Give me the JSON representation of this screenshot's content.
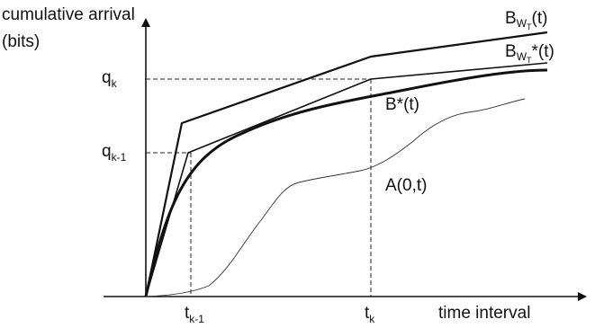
{
  "axes": {
    "y_label_line1": "cumulative arrival",
    "y_label_line2": "(bits)",
    "x_label": "time interval"
  },
  "markers": {
    "qk": {
      "base": "q",
      "sub": "k"
    },
    "qk1": {
      "base": "q",
      "sub": "k-1"
    },
    "tk": {
      "base": "t",
      "sub": "k"
    },
    "tk1": {
      "base": "t",
      "sub": "k-1"
    }
  },
  "curves": {
    "bwt": {
      "base": "B",
      "sub1": "W",
      "sub2": "T",
      "suffix": "(t)"
    },
    "bwt_star": {
      "base": "B",
      "sub1": "W",
      "sub2": "T",
      "suffix": "*(t)"
    },
    "b_star": "B*(t)",
    "a": "A(0,t)"
  },
  "colors": {
    "ink": "#111111",
    "grid": "#222222"
  }
}
